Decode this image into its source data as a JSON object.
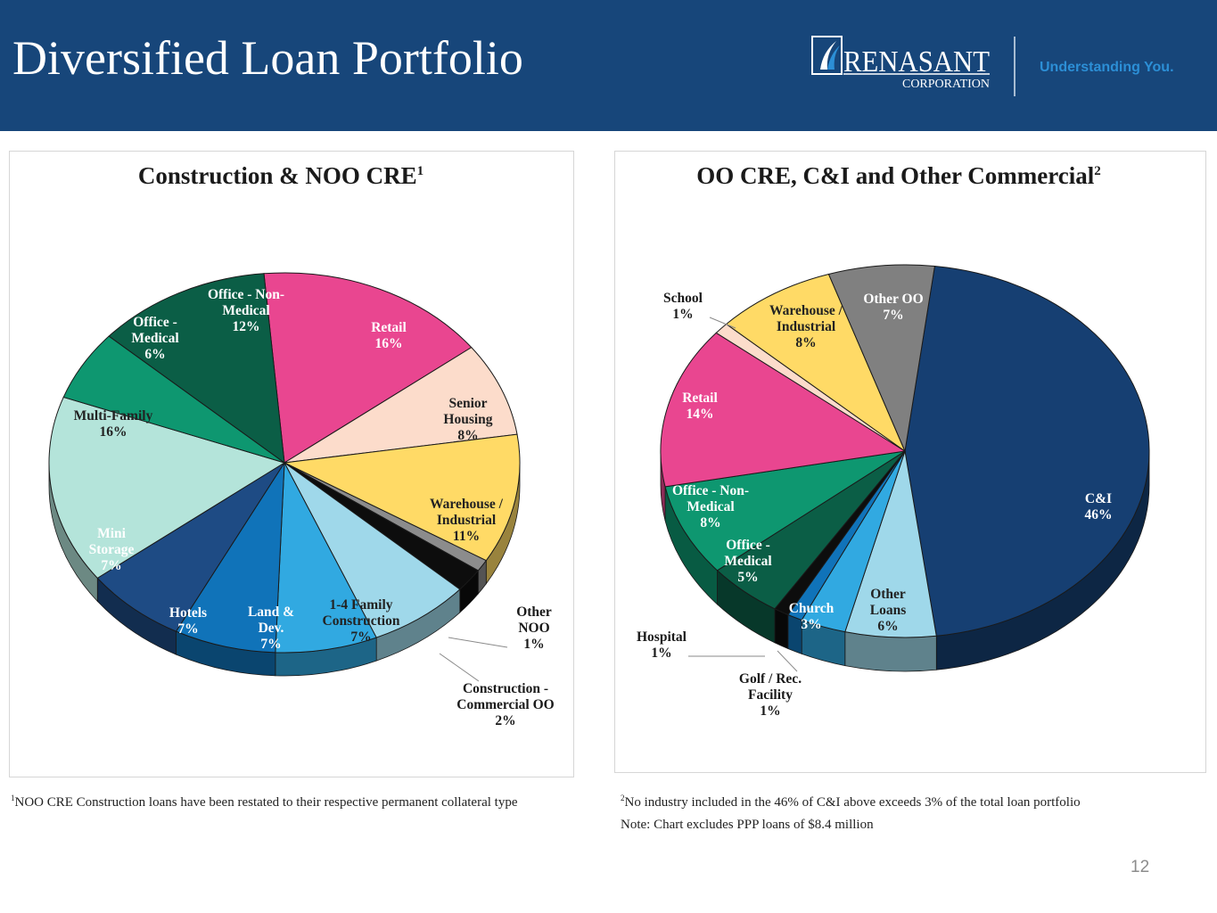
{
  "header": {
    "title": "Diversified Loan Portfolio",
    "logo_name": "RENASANT",
    "logo_sub": "CORPORATION",
    "tagline": "Understanding You."
  },
  "colors": {
    "header_bg": "#17467a",
    "tagline": "#2c8fd6"
  },
  "chart_data": [
    {
      "type": "pie",
      "title": "Construction & NOO CRE",
      "title_sup": "1",
      "slices": [
        {
          "label": "Retail",
          "display": "Retail|16%",
          "value": 16,
          "color": "#e94690",
          "text_color": "#ffffff"
        },
        {
          "label": "Senior Housing",
          "display": "Senior|Housing|8%",
          "value": 8,
          "color": "#fcdccb",
          "text_color": "#222222"
        },
        {
          "label": "Warehouse / Industrial",
          "display": "Warehouse /|Industrial|11%",
          "value": 11,
          "color": "#ffda66",
          "text_color": "#222222"
        },
        {
          "label": "Other NOO",
          "display": "Other|NOO|1%",
          "value": 1,
          "color": "#8c8c8c",
          "text_color": "#222222"
        },
        {
          "label": "Construction - Commercial OO",
          "display": "Construction -|Commercial OO|2%",
          "value": 2,
          "color": "#0d0d0d",
          "text_color": "#222222"
        },
        {
          "label": "1-4 Family Construction",
          "display": "1-4 Family|Construction|7%",
          "value": 7,
          "color": "#9fd8ea",
          "text_color": "#222222"
        },
        {
          "label": "Land & Dev.",
          "display": "Land &|Dev.|7%",
          "value": 7,
          "color": "#31a9e1",
          "text_color": "#ffffff"
        },
        {
          "label": "Hotels",
          "display": "Hotels|7%",
          "value": 7,
          "color": "#1073b9",
          "text_color": "#ffffff"
        },
        {
          "label": "Mini Storage",
          "display": "Mini|Storage|7%",
          "value": 7,
          "color": "#1e4b84",
          "text_color": "#ffffff"
        },
        {
          "label": "Multi-Family",
          "display": "Multi-Family|16%",
          "value": 16,
          "color": "#b4e4da",
          "text_color": "#222222"
        },
        {
          "label": "Office - Medical",
          "display": "Office -|Medical|6%",
          "value": 6,
          "color": "#0e9770",
          "text_color": "#ffffff"
        },
        {
          "label": "Office - Non-Medical",
          "display": "Office - Non-|Medical|12%",
          "value": 12,
          "color": "#0b5e46",
          "text_color": "#ffffff"
        }
      ]
    },
    {
      "type": "pie",
      "title": "OO CRE, C&I and Other Commercial",
      "title_sup": "2",
      "slices": [
        {
          "label": "C&I",
          "display": "C&I|46%",
          "value": 46,
          "color": "#163f72",
          "text_color": "#ffffff"
        },
        {
          "label": "Other Loans",
          "display": "Other|Loans|6%",
          "value": 6,
          "color": "#9fd8ea",
          "text_color": "#222222"
        },
        {
          "label": "Church",
          "display": "Church|3%",
          "value": 3,
          "color": "#31a9e1",
          "text_color": "#ffffff"
        },
        {
          "label": "Golf / Rec. Facility",
          "display": "Golf  / Rec.|Facility|1%",
          "value": 1,
          "color": "#1073b9",
          "text_color": "#222222"
        },
        {
          "label": "Hospital",
          "display": "Hospital|1%",
          "value": 1,
          "color": "#0d0d0d",
          "text_color": "#222222"
        },
        {
          "label": "Office - Medical",
          "display": "Office -|Medical|5%",
          "value": 5,
          "color": "#0b5e46",
          "text_color": "#ffffff"
        },
        {
          "label": "Office - Non-Medical",
          "display": "Office - Non-|Medical|8%",
          "value": 8,
          "color": "#0e9770",
          "text_color": "#ffffff"
        },
        {
          "label": "Retail",
          "display": "Retail|14%",
          "value": 14,
          "color": "#e94690",
          "text_color": "#ffffff"
        },
        {
          "label": "School",
          "display": "School|1%",
          "value": 1,
          "color": "#fcdccb",
          "text_color": "#222222"
        },
        {
          "label": "Warehouse / Industrial",
          "display": "Warehouse /|Industrial|8%",
          "value": 8,
          "color": "#ffda66",
          "text_color": "#222222"
        },
        {
          "label": "Other OO",
          "display": "Other OO|7%",
          "value": 7,
          "color": "#808080",
          "text_color": "#ffffff"
        }
      ]
    }
  ],
  "footnotes": {
    "left_sup": "1",
    "left": "NOO CRE Construction loans have been restated to their respective permanent collateral type",
    "right_sup": "2",
    "right": "No industry included in the 46% of C&I above exceeds 3% of the total loan portfolio",
    "note": "Note: Chart excludes PPP loans of $8.4 million"
  },
  "page_number": "12"
}
